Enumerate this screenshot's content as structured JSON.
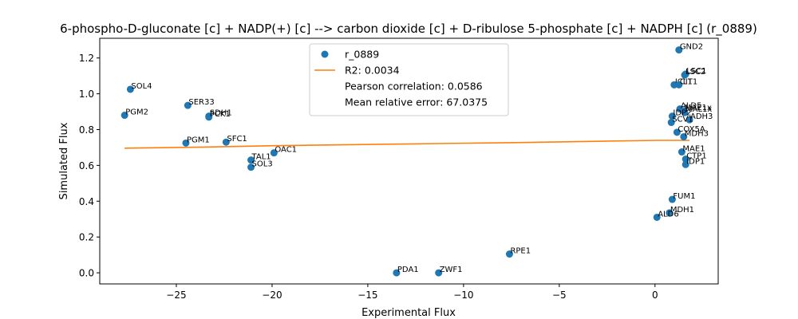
{
  "chart_data": {
    "type": "scatter",
    "title": "6-phospho-D-gluconate [c] + NADP(+) [c] --> carbon dioxide [c] + D-ribulose 5-phosphate [c] + NADPH [c] (r_0889)",
    "xlabel": "Experimental Flux",
    "ylabel": "Simulated Flux",
    "xlim": [
      -29.0,
      3.3
    ],
    "ylim": [
      -0.062,
      1.31
    ],
    "xticks": [
      -25,
      -20,
      -15,
      -10,
      -5,
      0
    ],
    "xtick_labels": [
      "−25",
      "−20",
      "−15",
      "−10",
      "−5",
      "0"
    ],
    "yticks": [
      0.0,
      0.2,
      0.4,
      0.6,
      0.8,
      1.0,
      1.2
    ],
    "ytick_labels": [
      "0.0",
      "0.2",
      "0.4",
      "0.6",
      "0.8",
      "1.0",
      "1.2"
    ],
    "grid": false,
    "legend_position": "top-center",
    "colors": {
      "points": "#1f77b4",
      "fit": "#ff7f0e"
    },
    "series": [
      {
        "name": "r_0889",
        "points": [
          {
            "label": "GND2",
            "x": 1.25,
            "y": 1.245
          },
          {
            "label": "LSC1",
            "x": 1.6,
            "y": 1.11
          },
          {
            "label": "LSC2",
            "x": 1.55,
            "y": 1.105
          },
          {
            "label": "ICL1",
            "x": 1.0,
            "y": 1.05
          },
          {
            "label": "CIT1",
            "x": 1.25,
            "y": 1.05
          },
          {
            "label": "SOL4",
            "x": -27.4,
            "y": 1.025
          },
          {
            "label": "SER33",
            "x": -24.4,
            "y": 0.935
          },
          {
            "label": "ALD5",
            "x": 1.3,
            "y": 0.915
          },
          {
            "label": "MAE1x",
            "x": 1.5,
            "y": 0.905
          },
          {
            "label": "MAL1x",
            "x": 1.55,
            "y": 0.895
          },
          {
            "label": "PGM2",
            "x": -27.7,
            "y": 0.88
          },
          {
            "label": "SDH1",
            "x": -23.3,
            "y": 0.875
          },
          {
            "label": "IDP2",
            "x": 0.9,
            "y": 0.875
          },
          {
            "label": "PCK1",
            "x": -23.3,
            "y": 0.87
          },
          {
            "label": "ADH3",
            "x": 1.8,
            "y": 0.855
          },
          {
            "label": "SCV1",
            "x": 0.85,
            "y": 0.84
          },
          {
            "label": "COX5A",
            "x": 1.15,
            "y": 0.785
          },
          {
            "label": "MDH3",
            "x": 1.5,
            "y": 0.76
          },
          {
            "label": "PGM1",
            "x": -24.5,
            "y": 0.725
          },
          {
            "label": "SFC1",
            "x": -22.4,
            "y": 0.73
          },
          {
            "label": "MAE1",
            "x": 1.4,
            "y": 0.675
          },
          {
            "label": "OAC1",
            "x": -19.9,
            "y": 0.67
          },
          {
            "label": "CTP1",
            "x": 1.6,
            "y": 0.635
          },
          {
            "label": "TAL1",
            "x": -21.1,
            "y": 0.63
          },
          {
            "label": "IDP1",
            "x": 1.6,
            "y": 0.605
          },
          {
            "label": "SOL3",
            "x": -21.1,
            "y": 0.59
          },
          {
            "label": "FUM1",
            "x": 0.9,
            "y": 0.41
          },
          {
            "label": "MDH1",
            "x": 0.75,
            "y": 0.335
          },
          {
            "label": "ALD6",
            "x": 0.1,
            "y": 0.31
          },
          {
            "label": "RPE1",
            "x": -7.6,
            "y": 0.105
          },
          {
            "label": "PDA1",
            "x": -13.5,
            "y": 0.0
          },
          {
            "label": "ZWF1",
            "x": -11.3,
            "y": 0.0
          }
        ]
      }
    ],
    "fit_line": {
      "r2_label": "R2: 0.0034",
      "x": [
        -27.7,
        -23.3,
        -19.9,
        -13.5,
        -11.3,
        -7.6,
        0.1,
        1.8
      ],
      "y": [
        0.696,
        0.703,
        0.71,
        0.719,
        0.722,
        0.727,
        0.74,
        0.74
      ]
    },
    "legend": [
      {
        "text": "r_0889",
        "kind": "marker"
      },
      {
        "text": "R2: 0.0034",
        "kind": "line"
      },
      {
        "text": "Pearson correlation: 0.0586",
        "kind": "none"
      },
      {
        "text": "Mean relative error: 67.0375",
        "kind": "none"
      }
    ]
  }
}
